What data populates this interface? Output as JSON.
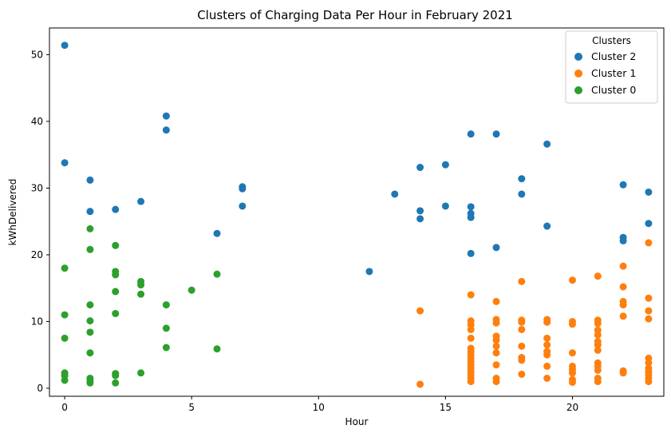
{
  "chart_data": {
    "type": "scatter",
    "title": "Clusters of Charging Data Per Hour in February 2021",
    "xlabel": "Hour",
    "ylabel": "kWhDelivered",
    "xlim": [
      -0.6,
      23.6
    ],
    "ylim": [
      -1.2,
      54
    ],
    "xticks": [
      0,
      5,
      10,
      15,
      20
    ],
    "yticks": [
      0,
      10,
      20,
      30,
      40,
      50
    ],
    "grid": false,
    "legend": {
      "title": "Clusters",
      "position": "top-right",
      "entries": [
        "Cluster 2",
        "Cluster 1",
        "Cluster 0"
      ]
    },
    "series": [
      {
        "name": "Cluster 2",
        "color": "#1f77b4",
        "points": [
          [
            0,
            51.4
          ],
          [
            0,
            33.8
          ],
          [
            1,
            31.2
          ],
          [
            1,
            26.5
          ],
          [
            2,
            26.8
          ],
          [
            3,
            28.0
          ],
          [
            4,
            40.8
          ],
          [
            4,
            38.7
          ],
          [
            6,
            23.2
          ],
          [
            7,
            30.2
          ],
          [
            7,
            29.9
          ],
          [
            7,
            27.3
          ],
          [
            12,
            17.5
          ],
          [
            13,
            29.1
          ],
          [
            14,
            33.1
          ],
          [
            14,
            26.6
          ],
          [
            14,
            25.4
          ],
          [
            15,
            33.5
          ],
          [
            15,
            27.3
          ],
          [
            16,
            38.1
          ],
          [
            16,
            27.2
          ],
          [
            16,
            26.2
          ],
          [
            16,
            25.6
          ],
          [
            16,
            20.2
          ],
          [
            17,
            38.1
          ],
          [
            17,
            21.1
          ],
          [
            18,
            31.4
          ],
          [
            18,
            29.1
          ],
          [
            19,
            36.6
          ],
          [
            19,
            24.3
          ],
          [
            22,
            30.5
          ],
          [
            22,
            22.6
          ],
          [
            22,
            22.1
          ],
          [
            23,
            29.4
          ],
          [
            23,
            24.7
          ]
        ]
      },
      {
        "name": "Cluster 1",
        "color": "#ff7f0e",
        "points": [
          [
            14,
            11.6
          ],
          [
            14,
            0.6
          ],
          [
            16,
            14.0
          ],
          [
            16,
            10.1
          ],
          [
            16,
            9.5
          ],
          [
            16,
            8.8
          ],
          [
            16,
            7.5
          ],
          [
            16,
            6.0
          ],
          [
            16,
            5.5
          ],
          [
            16,
            5.0
          ],
          [
            16,
            4.5
          ],
          [
            16,
            4.0
          ],
          [
            16,
            3.5
          ],
          [
            16,
            3.0
          ],
          [
            16,
            2.5
          ],
          [
            16,
            2.0
          ],
          [
            16,
            1.5
          ],
          [
            16,
            1.0
          ],
          [
            17,
            13.0
          ],
          [
            17,
            10.3
          ],
          [
            17,
            9.8
          ],
          [
            17,
            7.8
          ],
          [
            17,
            7.2
          ],
          [
            17,
            6.3
          ],
          [
            17,
            5.3
          ],
          [
            17,
            3.5
          ],
          [
            17,
            1.5
          ],
          [
            17,
            1.0
          ],
          [
            18,
            16.0
          ],
          [
            18,
            10.2
          ],
          [
            18,
            9.9
          ],
          [
            18,
            8.8
          ],
          [
            18,
            6.3
          ],
          [
            18,
            4.6
          ],
          [
            18,
            4.2
          ],
          [
            18,
            2.1
          ],
          [
            19,
            10.3
          ],
          [
            19,
            9.9
          ],
          [
            19,
            7.5
          ],
          [
            19,
            6.5
          ],
          [
            19,
            5.5
          ],
          [
            19,
            5.0
          ],
          [
            19,
            3.3
          ],
          [
            19,
            1.5
          ],
          [
            20,
            16.2
          ],
          [
            20,
            10.0
          ],
          [
            20,
            9.6
          ],
          [
            20,
            5.3
          ],
          [
            20,
            3.3
          ],
          [
            20,
            2.8
          ],
          [
            20,
            2.3
          ],
          [
            20,
            1.3
          ],
          [
            20,
            0.9
          ],
          [
            21,
            16.8
          ],
          [
            21,
            10.2
          ],
          [
            21,
            9.7
          ],
          [
            21,
            8.7
          ],
          [
            21,
            8.0
          ],
          [
            21,
            7.0
          ],
          [
            21,
            6.5
          ],
          [
            21,
            5.7
          ],
          [
            21,
            3.8
          ],
          [
            21,
            3.3
          ],
          [
            21,
            2.7
          ],
          [
            21,
            1.5
          ],
          [
            21,
            1.0
          ],
          [
            22,
            18.3
          ],
          [
            22,
            15.2
          ],
          [
            22,
            13.0
          ],
          [
            22,
            12.5
          ],
          [
            22,
            10.8
          ],
          [
            22,
            2.6
          ],
          [
            22,
            2.3
          ],
          [
            23,
            21.8
          ],
          [
            23,
            13.5
          ],
          [
            23,
            11.6
          ],
          [
            23,
            10.4
          ],
          [
            23,
            4.5
          ],
          [
            23,
            3.8
          ],
          [
            23,
            3.0
          ],
          [
            23,
            2.5
          ],
          [
            23,
            2.0
          ],
          [
            23,
            1.5
          ],
          [
            23,
            1.0
          ]
        ]
      },
      {
        "name": "Cluster 0",
        "color": "#2ca02c",
        "points": [
          [
            0,
            18.0
          ],
          [
            0,
            11.0
          ],
          [
            0,
            7.5
          ],
          [
            0,
            2.3
          ],
          [
            0,
            1.9
          ],
          [
            0,
            1.2
          ],
          [
            1,
            23.9
          ],
          [
            1,
            20.8
          ],
          [
            1,
            12.5
          ],
          [
            1,
            10.1
          ],
          [
            1,
            8.4
          ],
          [
            1,
            5.3
          ],
          [
            1,
            1.5
          ],
          [
            1,
            1.1
          ],
          [
            1,
            0.8
          ],
          [
            2,
            21.4
          ],
          [
            2,
            17.5
          ],
          [
            2,
            17.0
          ],
          [
            2,
            14.5
          ],
          [
            2,
            11.2
          ],
          [
            2,
            2.2
          ],
          [
            2,
            1.9
          ],
          [
            2,
            0.8
          ],
          [
            3,
            16.0
          ],
          [
            3,
            15.5
          ],
          [
            3,
            14.1
          ],
          [
            3,
            2.3
          ],
          [
            4,
            12.5
          ],
          [
            4,
            9.0
          ],
          [
            4,
            6.1
          ],
          [
            5,
            14.7
          ],
          [
            6,
            17.1
          ],
          [
            6,
            5.9
          ]
        ]
      }
    ]
  }
}
